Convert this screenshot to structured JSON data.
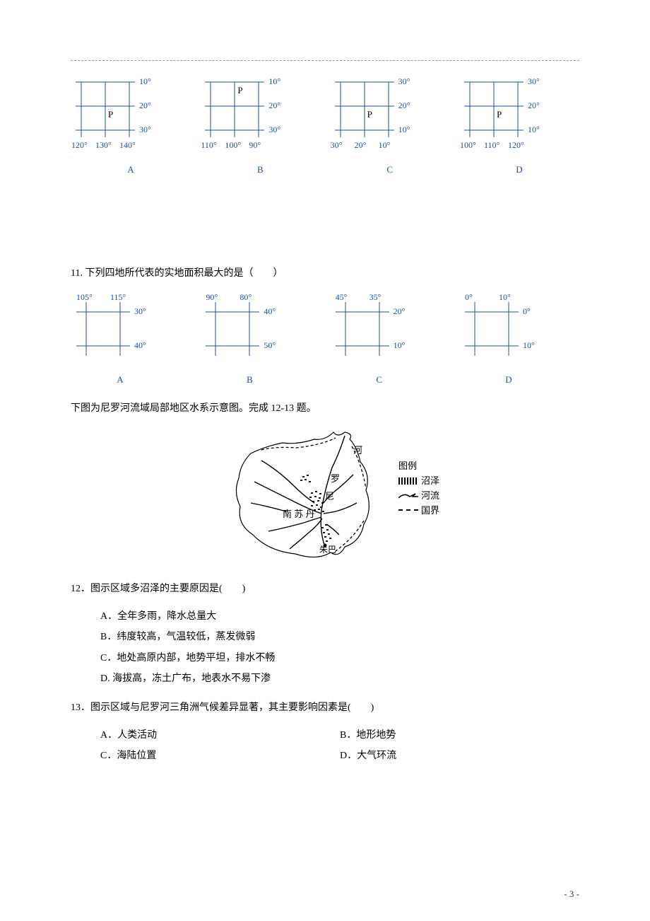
{
  "page_number": "- 3 -",
  "colors": {
    "label": "#1a4fa0",
    "grid_line": "#1a4fa0",
    "text": "#000000",
    "background": "#ffffff",
    "header_line": "#999999"
  },
  "grid_set_10": {
    "line_width": 1,
    "line_color": "#1a4fa0",
    "label_color": "#1a4fa0",
    "label_fontsize": 12,
    "cells": [
      {
        "letter": "A",
        "p_label": "P",
        "p_col": 1,
        "p_row": 1,
        "right_labels": [
          "10°",
          "20°",
          "30°"
        ],
        "bottom_labels": [
          "120°",
          "130°",
          "140°"
        ]
      },
      {
        "letter": "B",
        "p_label": "P",
        "p_col": 1,
        "p_row": 0,
        "right_labels": [
          "10°",
          "20°",
          "30°"
        ],
        "bottom_labels": [
          "110°",
          "100°",
          "90°"
        ]
      },
      {
        "letter": "C",
        "p_label": "P",
        "p_col": 1,
        "p_row": 1,
        "right_labels": [
          "30°",
          "20°",
          "10°"
        ],
        "bottom_labels": [
          "30°",
          "20°",
          "10°"
        ]
      },
      {
        "letter": "D",
        "p_label": "P",
        "p_col": 1,
        "p_row": 1,
        "right_labels": [
          "30°",
          "20°",
          "10°"
        ],
        "bottom_labels": [
          "100°",
          "110°",
          "120°"
        ]
      }
    ]
  },
  "q11": {
    "text": "11. 下列四地所代表的实地面积最大的是（　　）",
    "line_width": 1,
    "line_color": "#1a4fa0",
    "label_color": "#1a4fa0",
    "label_fontsize": 12,
    "cells": [
      {
        "letter": "A",
        "top_labels": [
          "105°",
          "115°"
        ],
        "right_labels": [
          "30°",
          "40°"
        ]
      },
      {
        "letter": "B",
        "top_labels": [
          "90°",
          "80°"
        ],
        "right_labels": [
          "40°",
          "50°"
        ]
      },
      {
        "letter": "C",
        "top_labels": [
          "45°",
          "35°"
        ],
        "right_labels": [
          "20°",
          "10°"
        ]
      },
      {
        "letter": "D",
        "top_labels": [
          "0°",
          "10°"
        ],
        "right_labels": [
          "0°",
          "10°"
        ]
      }
    ]
  },
  "map_intro": "下图为尼罗河流域局部地区水系示意图。完成 12-13 题。",
  "map": {
    "legend_title": "图例",
    "legend_items": [
      {
        "type": "swamp",
        "label": "沼泽"
      },
      {
        "type": "river",
        "label": "河流"
      },
      {
        "type": "border",
        "label": "国界"
      }
    ],
    "place_labels": [
      "南 苏 丹",
      "朱巴",
      "尼",
      "罗",
      "河"
    ]
  },
  "q12": {
    "text": "12．图示区域多沼泽的主要原因是(　　)",
    "options": [
      "A．全年多雨，降水总量大",
      "B．纬度较高，气温较低，蒸发微弱",
      "C．地处高原内部，地势平坦，排水不畅",
      "D. 海拔高，冻土广布，地表水不易下渗"
    ]
  },
  "q13": {
    "text": "13．图示区域与尼罗河三角洲气候差异显著，其主要影响因素是(　　)",
    "options": [
      "A．人类活动",
      "B．地形地势",
      "C．海陆位置",
      "D．大气环流"
    ]
  }
}
